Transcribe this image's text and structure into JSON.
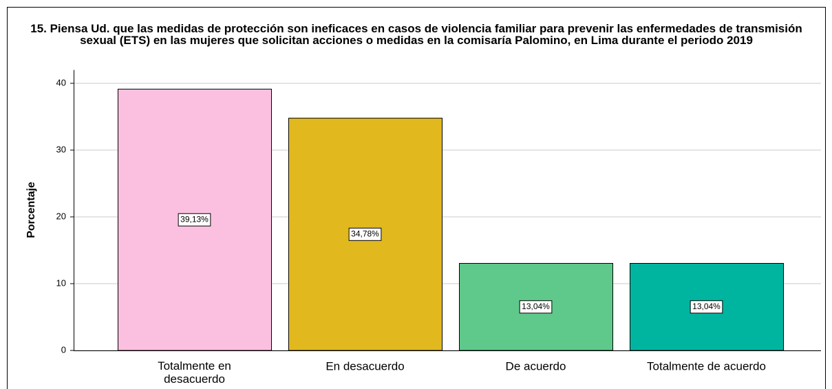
{
  "chart_data": {
    "type": "bar",
    "title": "15. Piensa Ud. que las medidas de protección son ineficaces en casos de violencia familiar para prevenir las enfermedades de transmisión sexual (ETS) en las mujeres que solicitan acciones o medidas en la comisaría Palomino, en Lima durante el periodo 2019",
    "y_label": "Porcentaje",
    "categories": [
      "Totalmente en desacuerdo",
      "En desacuerdo",
      "De acuerdo",
      "Totalmente de acuerdo"
    ],
    "values": [
      39.13,
      34.78,
      13.04,
      13.04
    ],
    "value_labels": [
      "39,13%",
      "34,78%",
      "13,04%",
      "13,04%"
    ],
    "colors": [
      "#fbc0e0",
      "#e1b91f",
      "#5ec98a",
      "#00b5a0"
    ],
    "ylim": [
      0,
      42
    ],
    "yticks": [
      0,
      10,
      20,
      30,
      40
    ],
    "grid": true
  }
}
